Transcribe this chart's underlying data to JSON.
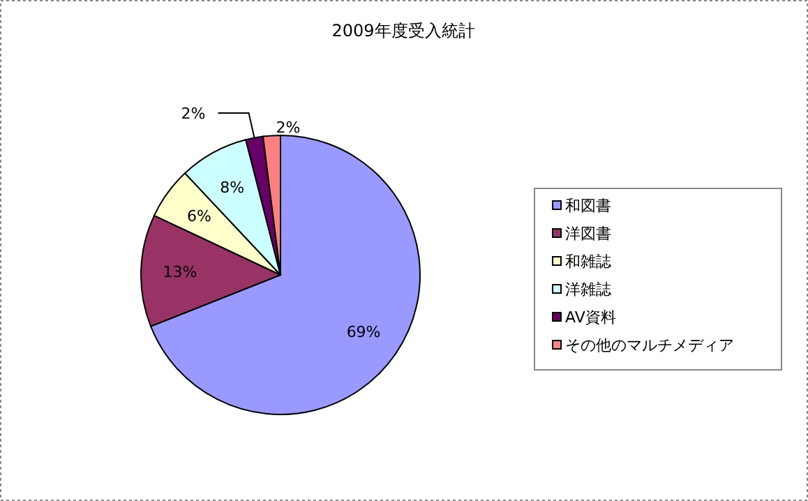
{
  "chart_data": {
    "type": "pie",
    "title": "2009年度受入統計",
    "categories": [
      "和図書",
      "洋図書",
      "和雑誌",
      "洋雑誌",
      "AV資料",
      "その他のマルチメディア"
    ],
    "values": [
      69,
      13,
      6,
      8,
      2,
      2
    ],
    "value_labels": [
      "69%",
      "13%",
      "6%",
      "8%",
      "2%",
      "2%"
    ],
    "colors": [
      "#9999ff",
      "#993366",
      "#ffffcc",
      "#ccffff",
      "#660066",
      "#ff8080"
    ],
    "legend": "right"
  }
}
